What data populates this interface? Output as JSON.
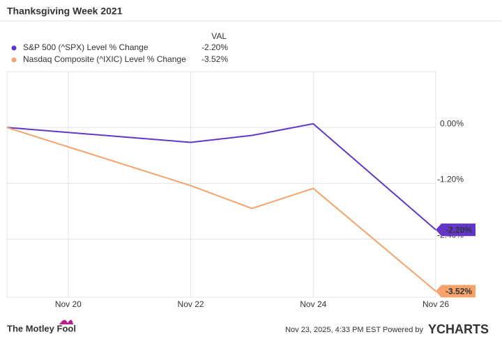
{
  "chart_data": {
    "type": "line",
    "title": "Thanksgiving Week 2021",
    "legend_header": "VAL",
    "x": [
      "Nov 19",
      "Nov 22",
      "Nov 23",
      "Nov 24",
      "Nov 26"
    ],
    "xlim": [
      "Nov 19",
      "Nov 26"
    ],
    "xticks": [
      "Nov 20",
      "Nov 22",
      "Nov 24",
      "Nov 26"
    ],
    "ylim": [
      -3.65,
      1.2
    ],
    "yticks": [
      {
        "value": 0,
        "label": "0.00%"
      },
      {
        "value": -1.2,
        "label": "-1.20%"
      },
      {
        "value": -2.4,
        "label": "-2.40%"
      }
    ],
    "grid": true,
    "series": [
      {
        "name": "S&P 500 (^SPX) Level % Change",
        "color": "#6236c9",
        "values": [
          0,
          -0.32,
          -0.17,
          0.08,
          -2.2
        ],
        "value_labels": [
          null,
          null,
          null,
          null,
          "-2.20%"
        ]
      },
      {
        "name": "Nasdaq Composite (^IXIC) Level % Change",
        "color": "#f5a26b",
        "values": [
          0,
          -1.25,
          -1.74,
          -1.31,
          -3.52
        ],
        "value_labels": [
          null,
          null,
          null,
          null,
          "-3.52%"
        ]
      }
    ]
  },
  "footer": {
    "brand": "The Motley Fool",
    "timestamp": "Nov 23, 2025, 4:33 PM EST Powered by",
    "provider": "YCHARTS"
  }
}
